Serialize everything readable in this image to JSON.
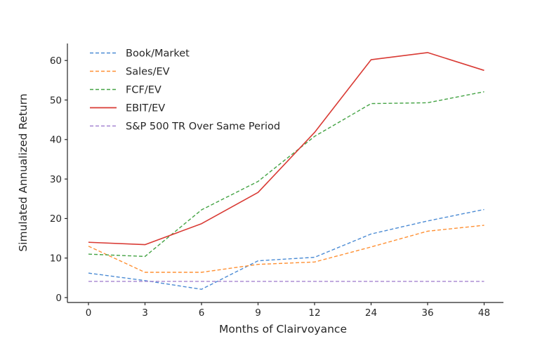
{
  "chart_data": {
    "type": "line",
    "title": "",
    "xlabel": "Months of Clairvoyance",
    "ylabel": "Simulated Annualized Return",
    "categories": [
      "0",
      "3",
      "6",
      "9",
      "12",
      "24",
      "36",
      "48"
    ],
    "x_values": [
      0,
      3,
      6,
      9,
      12,
      24,
      36,
      48
    ],
    "yticks": [
      0,
      10,
      20,
      30,
      40,
      50,
      60
    ],
    "ylim": [
      -1.2,
      64.5
    ],
    "grid": false,
    "legend_position": "upper-left",
    "axis_color": "#262626",
    "series": [
      {
        "name": "Book/Market",
        "color": "#4b8bd4",
        "style": "dashed",
        "values": [
          6.2,
          4.3,
          2.1,
          9.3,
          10.2,
          16.1,
          19.4,
          22.3
        ]
      },
      {
        "name": "Sales/EV",
        "color": "#ff9033",
        "style": "dashed",
        "values": [
          13.0,
          6.4,
          6.4,
          8.4,
          9.0,
          12.8,
          16.8,
          18.3
        ]
      },
      {
        "name": "FCF/EV",
        "color": "#44a344",
        "style": "dashed",
        "values": [
          11.0,
          10.4,
          22.2,
          29.4,
          40.8,
          49.1,
          49.3,
          52.1
        ]
      },
      {
        "name": "EBIT/EV",
        "color": "#d93a34",
        "style": "solid",
        "values": [
          14.0,
          13.4,
          18.7,
          26.6,
          41.8,
          60.2,
          62.0,
          57.5
        ]
      },
      {
        "name": "S&P 500 TR Over Same Period",
        "color": "#a583d1",
        "style": "dashed",
        "values": [
          4.1,
          4.1,
          4.1,
          4.1,
          4.1,
          4.1,
          4.1,
          4.1
        ]
      }
    ]
  }
}
